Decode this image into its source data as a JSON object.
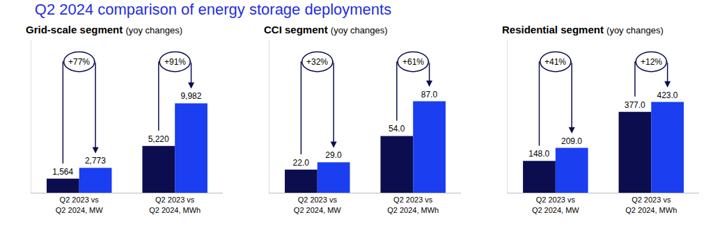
{
  "title": "Q2 2024 comparison of energy storage deployments",
  "chart_data": [
    {
      "type": "bar",
      "title": "Grid-scale segment",
      "subtitle": "(yoy changes)",
      "categories": [
        "Q2 2023 vs Q2 2024, MW",
        "Q2 2023 vs Q2 2024, MWh"
      ],
      "series": [
        {
          "color": "#0b0d4f",
          "values": [
            1564,
            5220
          ],
          "value_labels": [
            "1,564",
            "5,220"
          ]
        },
        {
          "color": "#1a3ef0",
          "values": [
            2773,
            9982
          ],
          "value_labels": [
            "2,773",
            "9,982"
          ]
        }
      ],
      "annotations": [
        "+77%",
        "+91%"
      ],
      "ylim": [
        0,
        17000
      ],
      "yticks": [],
      "grid": false,
      "data_labels": true,
      "tick_labels": "x"
    },
    {
      "type": "bar",
      "title": "CCI segment",
      "subtitle": "(yoy changes)",
      "categories": [
        "Q2 2023 vs Q2 2024, MW",
        "Q2 2023 vs Q2 2024, MWh"
      ],
      "series": [
        {
          "color": "#0b0d4f",
          "values": [
            22,
            54
          ],
          "value_labels": [
            "22.0",
            "54.0"
          ]
        },
        {
          "color": "#1a3ef0",
          "values": [
            29,
            87
          ],
          "value_labels": [
            "29.0",
            "87.0"
          ]
        }
      ],
      "annotations": [
        "+32%",
        "+61%"
      ],
      "ylim": [
        0,
        145
      ],
      "yticks": [],
      "grid": false,
      "data_labels": true,
      "tick_labels": "x"
    },
    {
      "type": "bar",
      "title": "Residential segment",
      "subtitle": "(yoy changes)",
      "categories": [
        "Q2 2023 vs Q2 2024, MW",
        "Q2 2023 vs Q2 2024, MWh"
      ],
      "series": [
        {
          "color": "#0b0d4f",
          "values": [
            148,
            377
          ],
          "value_labels": [
            "148.0",
            "377.0"
          ]
        },
        {
          "color": "#1a3ef0",
          "values": [
            209,
            423
          ],
          "value_labels": [
            "209.0",
            "423.0"
          ]
        }
      ],
      "annotations": [
        "+41%",
        "+12%"
      ],
      "ylim": [
        0,
        710
      ],
      "yticks": [],
      "grid": false,
      "data_labels": true,
      "tick_labels": "x"
    }
  ]
}
